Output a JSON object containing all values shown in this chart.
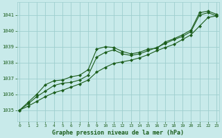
{
  "title": "Graphe pression niveau de la mer (hPa)",
  "background_color": "#c8eaea",
  "grid_color": "#9ecece",
  "line_color": "#1a5c1a",
  "xlim": [
    -0.3,
    23.3
  ],
  "ylim": [
    1034.3,
    1041.8
  ],
  "xticks": [
    0,
    1,
    2,
    3,
    4,
    5,
    6,
    7,
    8,
    9,
    10,
    11,
    12,
    13,
    14,
    15,
    16,
    17,
    18,
    19,
    20,
    21,
    22,
    23
  ],
  "yticks": [
    1035,
    1036,
    1037,
    1038,
    1039,
    1040,
    1041
  ],
  "series1_x": [
    0,
    1,
    2,
    3,
    4,
    5,
    6,
    7,
    8,
    9,
    10,
    11,
    12,
    13,
    14,
    15,
    16,
    17,
    18,
    19,
    20,
    21,
    22,
    23
  ],
  "series1_y": [
    1035.0,
    1035.5,
    1036.0,
    1036.6,
    1036.85,
    1036.9,
    1037.1,
    1037.2,
    1037.55,
    1038.85,
    1039.0,
    1038.95,
    1038.7,
    1038.55,
    1038.65,
    1038.85,
    1038.9,
    1039.3,
    1039.5,
    1039.75,
    1040.05,
    1041.15,
    1041.25,
    1041.05
  ],
  "series2_x": [
    0,
    1,
    2,
    3,
    4,
    5,
    6,
    7,
    8,
    9,
    10,
    11,
    12,
    13,
    14,
    15,
    16,
    17,
    18,
    19,
    20,
    21,
    22,
    23
  ],
  "series2_y": [
    1035.0,
    1035.4,
    1035.85,
    1036.2,
    1036.55,
    1036.7,
    1036.75,
    1036.9,
    1037.2,
    1038.35,
    1038.65,
    1038.8,
    1038.55,
    1038.45,
    1038.55,
    1038.75,
    1038.95,
    1039.2,
    1039.45,
    1039.65,
    1039.95,
    1041.0,
    1041.15,
    1040.95
  ],
  "series3_x": [
    0,
    1,
    2,
    3,
    4,
    5,
    6,
    7,
    8,
    9,
    10,
    11,
    12,
    13,
    14,
    15,
    16,
    17,
    18,
    19,
    20,
    21,
    22,
    23
  ],
  "series3_y": [
    1035.0,
    1035.25,
    1035.55,
    1035.85,
    1036.1,
    1036.25,
    1036.45,
    1036.65,
    1036.9,
    1037.4,
    1037.7,
    1037.95,
    1038.05,
    1038.15,
    1038.3,
    1038.5,
    1038.75,
    1038.95,
    1039.15,
    1039.45,
    1039.75,
    1040.3,
    1040.85,
    1040.95
  ]
}
